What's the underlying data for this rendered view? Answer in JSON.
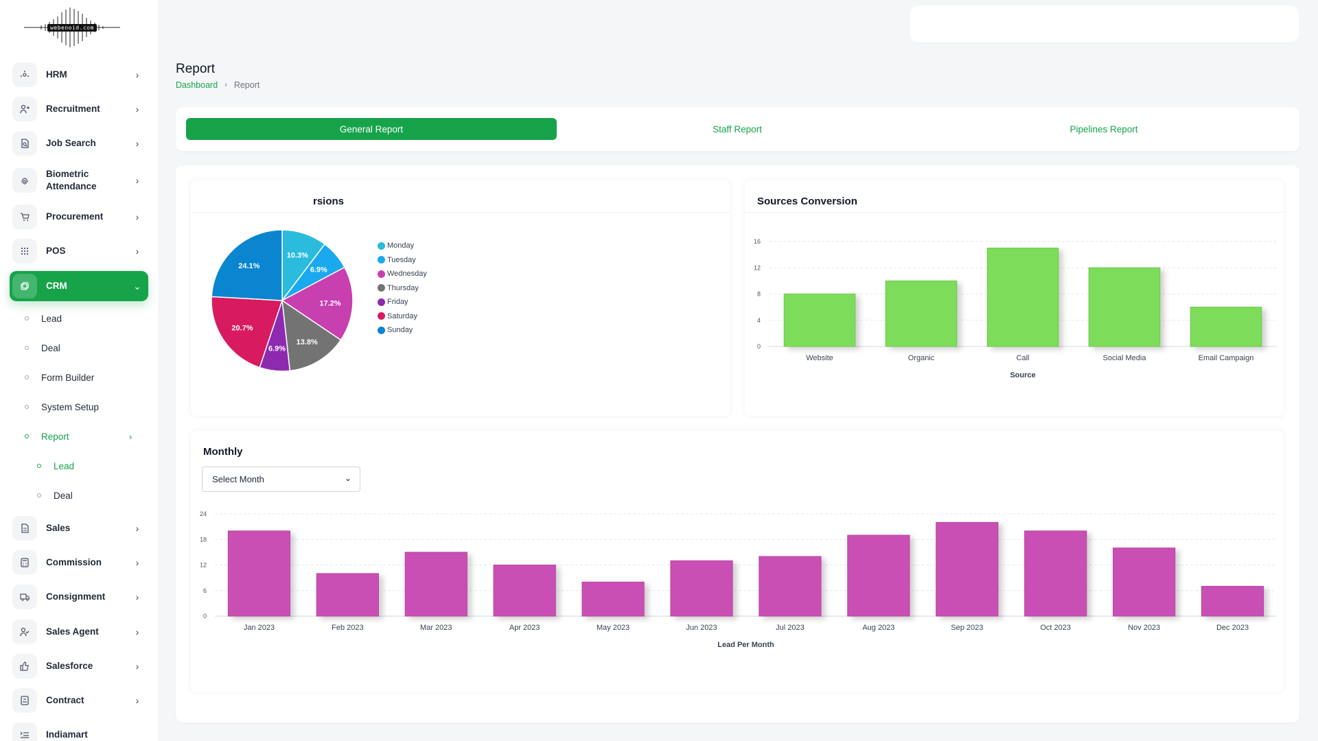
{
  "logo": {
    "text": "webenoid.com"
  },
  "sidebar": {
    "items": [
      {
        "label": "HRM",
        "icon": "hrm-icon"
      },
      {
        "label": "Recruitment",
        "icon": "user-plus-icon"
      },
      {
        "label": "Job Search",
        "icon": "file-search-icon"
      },
      {
        "label": "Biometric Attendance",
        "icon": "fingerprint-icon"
      },
      {
        "label": "Procurement",
        "icon": "cart-icon"
      },
      {
        "label": "POS",
        "icon": "grid-icon"
      },
      {
        "label": "CRM",
        "icon": "crm-icon"
      },
      {
        "label": "Sales",
        "icon": "document-icon"
      },
      {
        "label": "Commission",
        "icon": "calculator-icon"
      },
      {
        "label": "Consignment",
        "icon": "truck-icon"
      },
      {
        "label": "Sales Agent",
        "icon": "user-check-icon"
      },
      {
        "label": "Salesforce",
        "icon": "thumbs-up-icon"
      },
      {
        "label": "Contract",
        "icon": "contract-icon"
      },
      {
        "label": "Indiamart",
        "icon": "list-icon"
      }
    ],
    "crm_sub": [
      {
        "label": "Lead"
      },
      {
        "label": "Deal"
      },
      {
        "label": "Form Builder"
      },
      {
        "label": "System Setup"
      },
      {
        "label": "Report"
      }
    ],
    "report_sub": [
      {
        "label": "Lead"
      },
      {
        "label": "Deal"
      }
    ]
  },
  "header": {
    "title": "Report",
    "breadcrumb": {
      "home": "Dashboard",
      "current": "Report"
    }
  },
  "tabs": [
    {
      "label": "General Report"
    },
    {
      "label": "Staff Report"
    },
    {
      "label": "Pipelines Report"
    }
  ],
  "panels": {
    "days": {
      "title_visible": "rsions"
    },
    "sources": {
      "title": "Sources Conversion"
    },
    "monthly": {
      "title": "Monthly",
      "select_value": "Select Month"
    }
  },
  "colors": {
    "accent": "#16a34a",
    "bar_green": "#7ddc5a",
    "bar_magenta": "#c94fb5"
  },
  "chart_data": [
    {
      "type": "pie",
      "categories": [
        "Monday",
        "Tuesday",
        "Wednesday",
        "Thursday",
        "Friday",
        "Saturday",
        "Sunday"
      ],
      "values": [
        10.3,
        6.9,
        17.2,
        13.8,
        6.9,
        20.7,
        24.1
      ],
      "labels": [
        "10.3%",
        "6.9%",
        "17.2%",
        "13.8%",
        "6.9%",
        "20.7%",
        "24.1%"
      ],
      "colors": [
        "#2bbbdc",
        "#1aa9ee",
        "#c83fb0",
        "#737373",
        "#8e2aaf",
        "#d81b5f",
        "#0a85d0"
      ],
      "legend": "right"
    },
    {
      "type": "bar",
      "categories": [
        "Website",
        "Organic",
        "Call",
        "Social Media",
        "Email Campaign"
      ],
      "values": [
        8,
        10,
        15,
        12,
        6
      ],
      "xlabel": "Source",
      "ylabel": "",
      "yticks": [
        "0",
        "4",
        "8",
        "12",
        "16"
      ],
      "ylim": [
        0,
        16
      ],
      "grid": true
    },
    {
      "type": "bar",
      "categories": [
        "Jan 2023",
        "Feb 2023",
        "Mar 2023",
        "Apr 2023",
        "May 2023",
        "Jun 2023",
        "Jul 2023",
        "Aug 2023",
        "Sep 2023",
        "Oct 2023",
        "Nov 2023",
        "Dec 2023"
      ],
      "values": [
        20,
        10,
        15,
        12,
        8,
        13,
        14,
        19,
        22,
        20,
        16,
        7
      ],
      "xlabel": "Lead Per Month",
      "ylabel": "",
      "yticks": [
        "0",
        "6",
        "12",
        "18",
        "24"
      ],
      "ylim": [
        0,
        24
      ],
      "grid": true
    }
  ]
}
